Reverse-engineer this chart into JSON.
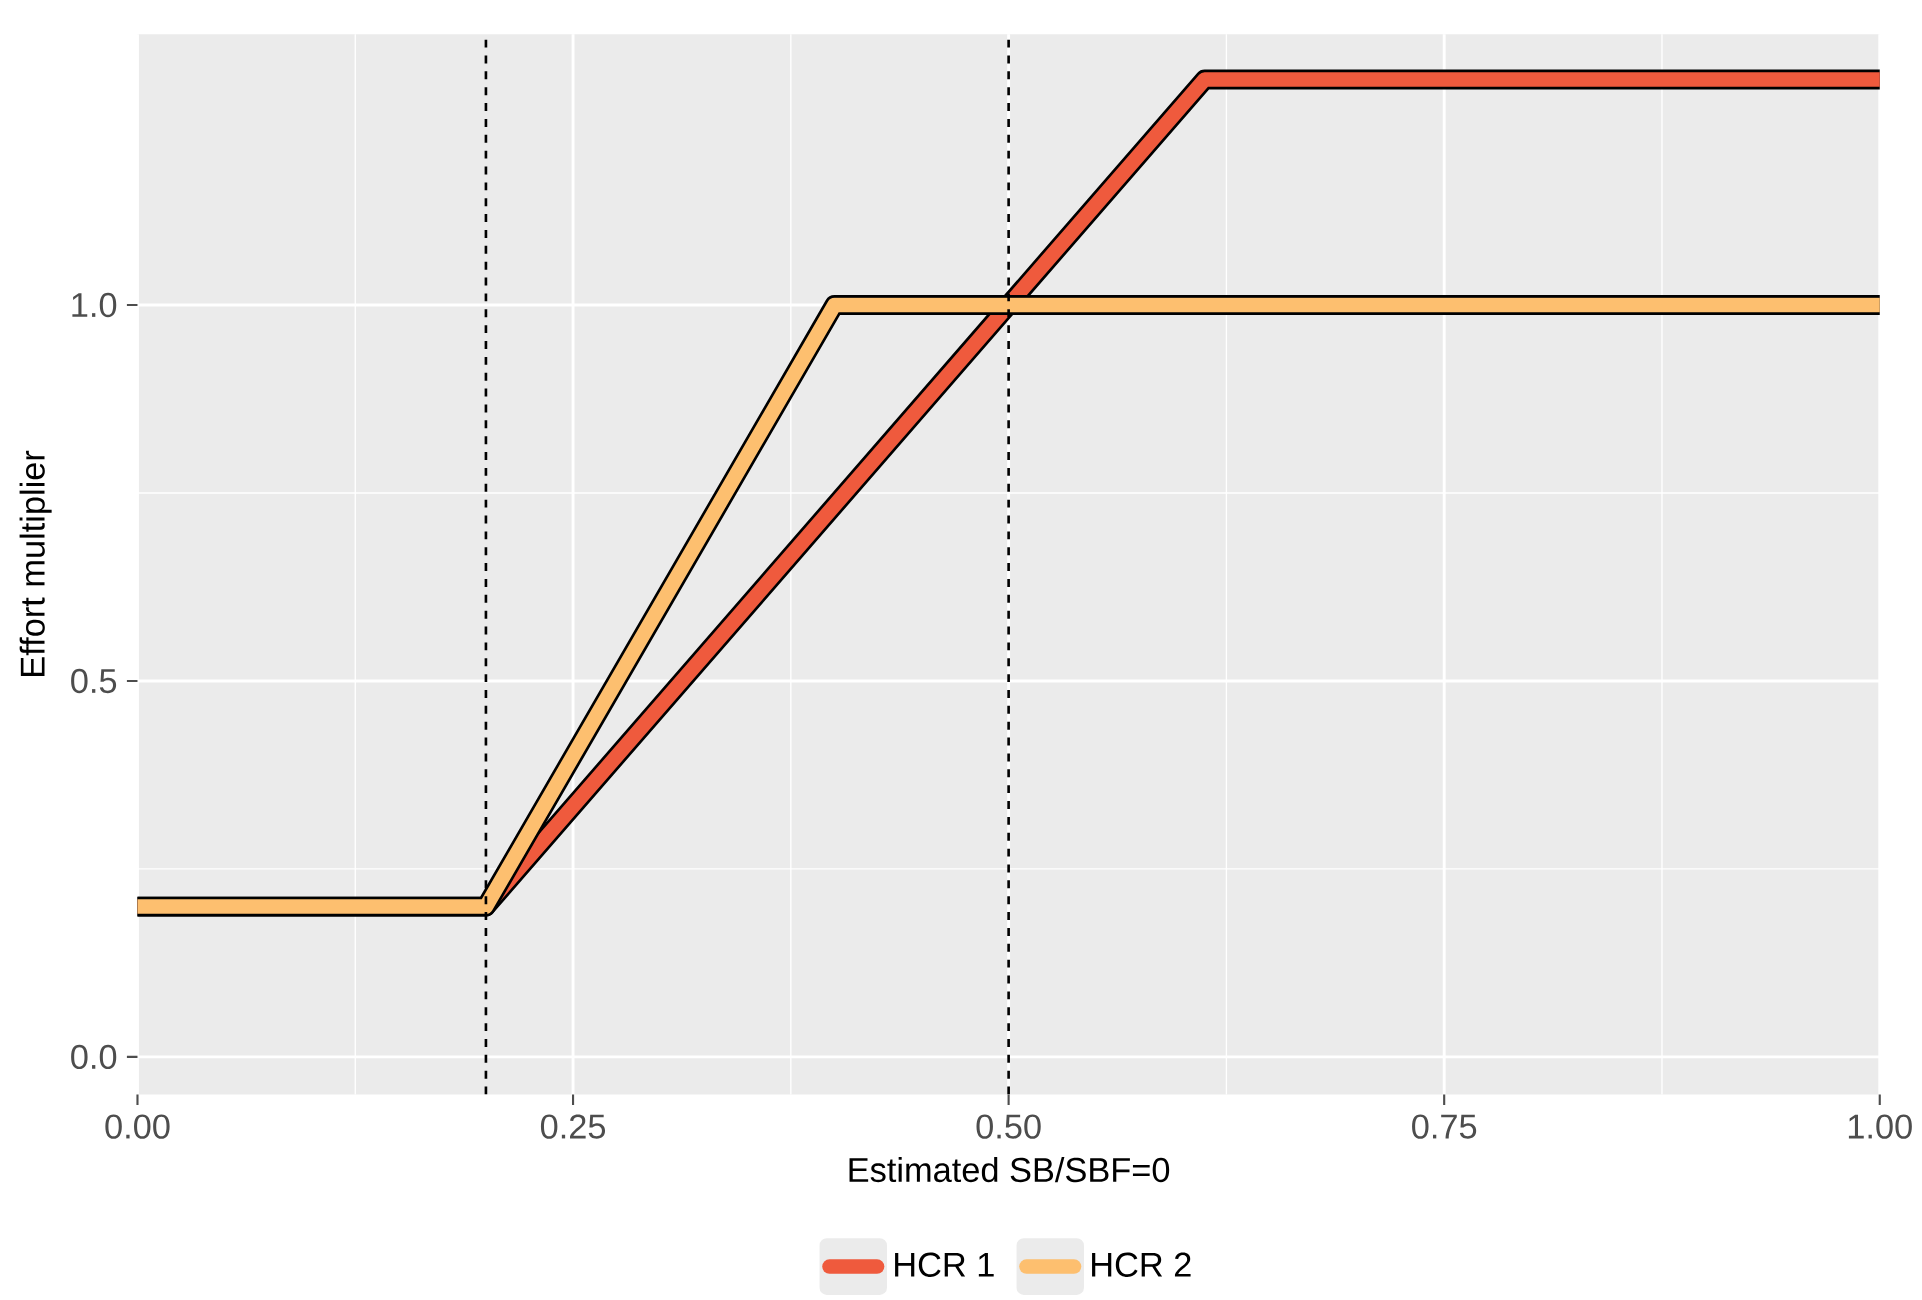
{
  "chart_data": {
    "type": "line",
    "xlabel": "Estimated SB/SBF=0",
    "ylabel": "Effort multiplier",
    "xlim": [
      0,
      1
    ],
    "ylim": [
      -0.05,
      1.36
    ],
    "xticks": [
      {
        "value": 0,
        "label": "0.00"
      },
      {
        "value": 0.25,
        "label": "0.25"
      },
      {
        "value": 0.5,
        "label": "0.50"
      },
      {
        "value": 0.75,
        "label": "0.75"
      },
      {
        "value": 1,
        "label": "1.00"
      }
    ],
    "yticks": [
      {
        "value": 0,
        "label": "0.0"
      },
      {
        "value": 0.5,
        "label": "0.5"
      },
      {
        "value": 1,
        "label": "1.0"
      }
    ],
    "series": [
      {
        "name": "HCR 1",
        "color": "#ef5a3d",
        "x": [
          0,
          0.2,
          0.6125,
          1
        ],
        "values": [
          0.2,
          0.2,
          1.3,
          1.3
        ]
      },
      {
        "name": "HCR 2",
        "color": "#fdbf6f",
        "x": [
          0,
          0.2,
          0.4,
          1
        ],
        "values": [
          0.2,
          0.2,
          1.0,
          1.0
        ]
      }
    ],
    "ref_lines": [
      {
        "axis": "x",
        "value": 0.2,
        "color": "#000000",
        "line_style": "dashed"
      },
      {
        "axis": "x",
        "value": 0.5,
        "color": "#000000",
        "line_style": "dashed"
      }
    ],
    "grid": true,
    "legend": "bottom",
    "marker": "none",
    "line_style": "solid"
  }
}
